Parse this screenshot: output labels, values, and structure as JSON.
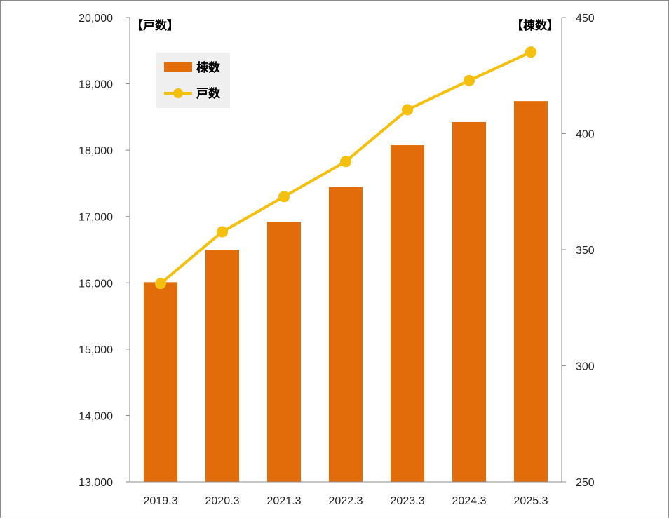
{
  "chart_data": {
    "type": "bar+line",
    "categories": [
      "2019.3",
      "2020.3",
      "2021.3",
      "2022.3",
      "2023.3",
      "2024.3",
      "2025.3"
    ],
    "series": [
      {
        "name": "棟数",
        "type": "bar",
        "axis": "right",
        "color": "#e36c0a",
        "values": [
          336,
          350,
          362,
          377,
          395,
          405,
          414
        ]
      },
      {
        "name": "戸数",
        "type": "line",
        "axis": "left",
        "color": "#f5c00d",
        "values": [
          15990,
          16770,
          17300,
          17830,
          18610,
          19050,
          19480
        ]
      }
    ],
    "left_axis": {
      "unit_label": "【戸数】",
      "ylim": [
        13000,
        20000
      ],
      "ticks": [
        "13,000",
        "14,000",
        "15,000",
        "16,000",
        "17,000",
        "18,000",
        "19,000",
        "20,000"
      ]
    },
    "right_axis": {
      "unit_label": "【棟数】",
      "ylim": [
        250,
        450
      ],
      "ticks": [
        "250",
        "300",
        "350",
        "400",
        "450"
      ]
    },
    "legend": {
      "placement": "top-left",
      "items": [
        "棟数",
        "戸数"
      ]
    },
    "grid": false
  }
}
